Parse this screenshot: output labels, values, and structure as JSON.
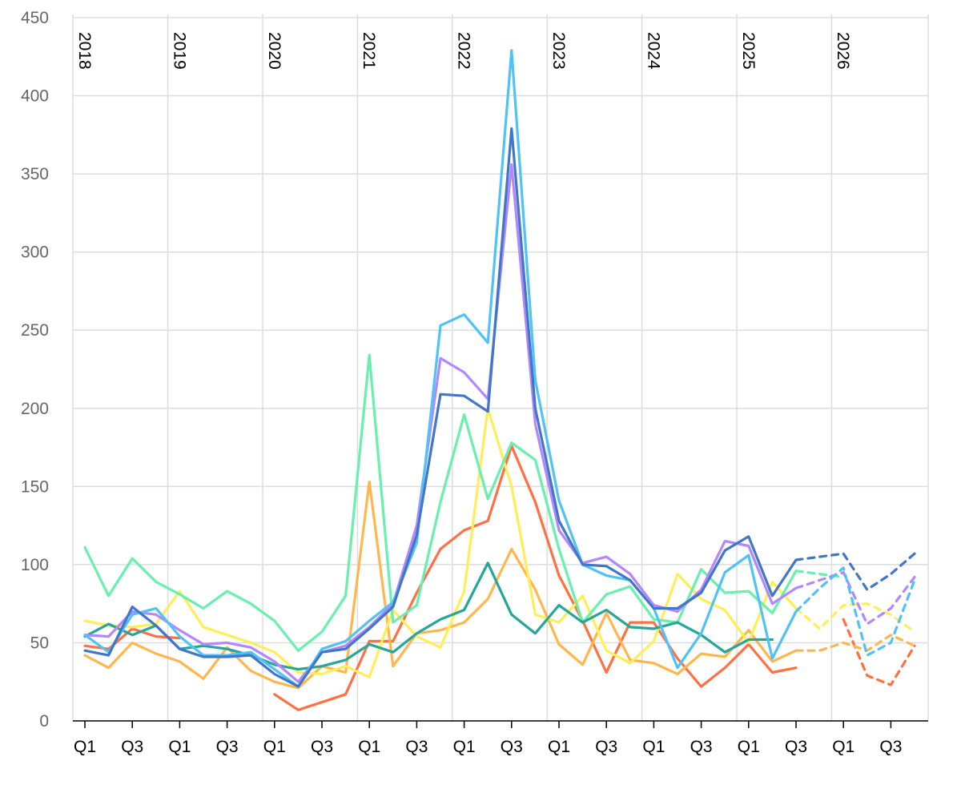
{
  "chart_data": {
    "type": "line",
    "title": "",
    "xlabel": "",
    "ylabel": "",
    "ylim": [
      0,
      450
    ],
    "yticks": [
      0,
      50,
      100,
      150,
      200,
      250,
      300,
      350,
      400,
      450
    ],
    "grid": true,
    "quarters": [
      "2018 Q1",
      "2018 Q2",
      "2018 Q3",
      "2018 Q4",
      "2019 Q1",
      "2019 Q2",
      "2019 Q3",
      "2019 Q4",
      "2020 Q1",
      "2020 Q2",
      "2020 Q3",
      "2020 Q4",
      "2021 Q1",
      "2021 Q2",
      "2021 Q3",
      "2021 Q4",
      "2022 Q1",
      "2022 Q2",
      "2022 Q3",
      "2022 Q4",
      "2023 Q1",
      "2023 Q2",
      "2023 Q3",
      "2023 Q4",
      "2024 Q1",
      "2024 Q2",
      "2024 Q3",
      "2024 Q4",
      "2025 Q1",
      "2025 Q2",
      "2025 Q3",
      "2025 Q4",
      "2026 Q1",
      "2026 Q2",
      "2026 Q3",
      "2026 Q4"
    ],
    "x_tick_labels": [
      "Q1",
      "Q3",
      "Q1",
      "Q3",
      "Q1",
      "Q3",
      "Q1",
      "Q3",
      "Q1",
      "Q3",
      "Q1",
      "Q3",
      "Q1",
      "Q3",
      "Q1",
      "Q3",
      "Q1",
      "Q3"
    ],
    "year_labels": [
      "2018",
      "2019",
      "2020",
      "2021",
      "2022",
      "2023",
      "2024",
      "2025",
      "2026"
    ],
    "forecast_start_index": 30,
    "series": [
      {
        "color": "#ff7043",
        "values": [
          48,
          46,
          59,
          54,
          53,
          null,
          null,
          null,
          17,
          7,
          12,
          17,
          51,
          51,
          82,
          110,
          122,
          128,
          176,
          140,
          93,
          64,
          31,
          63,
          63,
          40,
          22,
          34,
          49,
          31,
          34,
          null,
          65,
          29,
          23,
          48
        ]
      },
      {
        "color": "#ffb74d",
        "values": [
          42,
          34,
          50,
          43,
          38,
          27,
          47,
          32,
          25,
          21,
          35,
          31,
          153,
          35,
          56,
          58,
          63,
          78,
          110,
          84,
          49,
          36,
          69,
          39,
          37,
          30,
          43,
          41,
          58,
          38,
          45,
          45,
          50,
          45,
          55,
          48
        ]
      },
      {
        "color": "#ffee58",
        "values": [
          64,
          61,
          60,
          62,
          83,
          60,
          55,
          50,
          44,
          31,
          30,
          35,
          28,
          71,
          54,
          47,
          83,
          200,
          150,
          68,
          63,
          80,
          45,
          37,
          51,
          94,
          78,
          71,
          50,
          89,
          72,
          59,
          74,
          75,
          68,
          57
        ]
      },
      {
        "color": "#69f0ae",
        "values": [
          111,
          80,
          104,
          89,
          81,
          72,
          83,
          75,
          64,
          45,
          57,
          80,
          234,
          63,
          74,
          140,
          196,
          142,
          178,
          167,
          110,
          63,
          81,
          86,
          65,
          63,
          97,
          82,
          83,
          69,
          96,
          94,
          92,
          null,
          null,
          null
        ]
      },
      {
        "color": "#26a69a",
        "values": [
          54,
          62,
          55,
          61,
          46,
          48,
          46,
          42,
          36,
          33,
          35,
          39,
          49,
          44,
          56,
          65,
          71,
          101,
          68,
          56,
          74,
          63,
          71,
          60,
          59,
          63,
          55,
          44,
          52,
          52,
          null,
          null,
          null,
          null,
          null,
          null
        ]
      },
      {
        "color": "#b388ff",
        "values": [
          55,
          54,
          70,
          68,
          58,
          49,
          50,
          47,
          38,
          25,
          44,
          48,
          60,
          75,
          125,
          232,
          223,
          206,
          356,
          190,
          122,
          101,
          105,
          94,
          74,
          70,
          84,
          115,
          112,
          75,
          85,
          90,
          95,
          62,
          72,
          92
        ]
      },
      {
        "color": "#4fc3f7",
        "values": [
          55,
          44,
          68,
          72,
          54,
          42,
          42,
          44,
          33,
          22,
          46,
          51,
          64,
          76,
          114,
          253,
          260,
          242,
          429,
          218,
          141,
          100,
          93,
          90,
          72,
          34,
          56,
          95,
          106,
          40,
          70,
          85,
          98,
          42,
          50,
          90
        ]
      },
      {
        "color": "#4277c8",
        "values": [
          45,
          42,
          73,
          61,
          46,
          41,
          41,
          42,
          30,
          22,
          44,
          46,
          59,
          73,
          119,
          209,
          208,
          198,
          379,
          200,
          128,
          100,
          99,
          90,
          72,
          72,
          82,
          109,
          118,
          80,
          103,
          105,
          107,
          84,
          94,
          107
        ]
      }
    ]
  }
}
